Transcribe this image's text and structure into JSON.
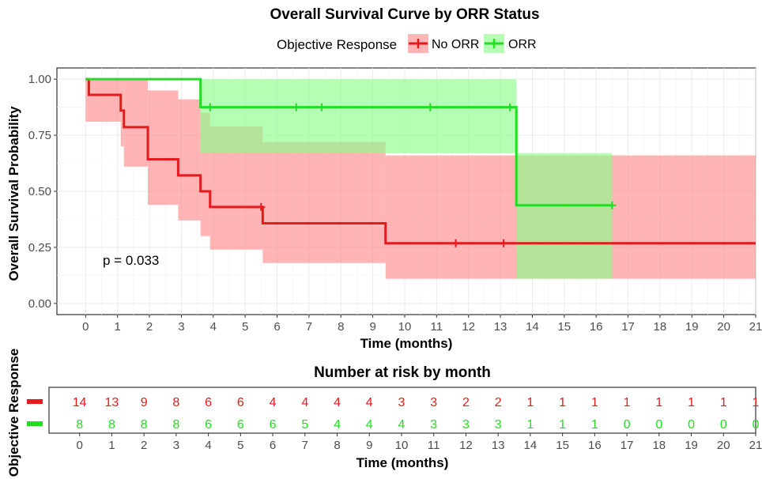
{
  "chart_data": [
    {
      "type": "line",
      "chart_kind": "kaplan-meier",
      "title": "Overall Survival Curve by ORR Status",
      "xlabel": "Time (months)",
      "ylabel": "Overall Survival Probability",
      "xlim": [
        -0.9,
        21
      ],
      "ylim": [
        -0.05,
        1.05
      ],
      "x_ticks": [
        0,
        1,
        2,
        3,
        4,
        5,
        6,
        7,
        8,
        9,
        10,
        11,
        12,
        13,
        14,
        15,
        16,
        17,
        18,
        19,
        20,
        21
      ],
      "y_ticks": [
        0.0,
        0.25,
        0.5,
        0.75,
        1.0
      ],
      "y_tick_labels": [
        "0.00",
        "0.25",
        "0.50",
        "0.75",
        "1.00"
      ],
      "grid": true,
      "legend": {
        "title": "Objective Response",
        "placement": "top",
        "entries": [
          "No ORR",
          "ORR"
        ]
      },
      "annotation": "p = 0.033",
      "series": [
        {
          "name": "No ORR",
          "color": "#e41a1c",
          "band_color": "#ff8888",
          "steps": [
            {
              "x": 0,
              "y": 1.0
            },
            {
              "x": 0.1,
              "y": 0.93
            },
            {
              "x": 1.1,
              "y": 0.86
            },
            {
              "x": 1.2,
              "y": 0.786
            },
            {
              "x": 1.95,
              "y": 0.643
            },
            {
              "x": 2.9,
              "y": 0.571
            },
            {
              "x": 3.6,
              "y": 0.5
            },
            {
              "x": 3.9,
              "y": 0.43
            },
            {
              "x": 5.55,
              "y": 0.357
            },
            {
              "x": 9.4,
              "y": 0.268
            }
          ],
          "end_x": 21,
          "censor_x": [
            5.5,
            11.6,
            13.1
          ],
          "ci": [
            {
              "x": 0,
              "lo": 0.81,
              "hi": 1.0
            },
            {
              "x": 1.1,
              "lo": 0.7,
              "hi": 1.0
            },
            {
              "x": 1.2,
              "lo": 0.61,
              "hi": 1.0
            },
            {
              "x": 1.95,
              "lo": 0.44,
              "hi": 0.95
            },
            {
              "x": 2.9,
              "lo": 0.37,
              "hi": 0.91
            },
            {
              "x": 3.6,
              "lo": 0.3,
              "hi": 0.85
            },
            {
              "x": 3.9,
              "lo": 0.24,
              "hi": 0.79
            },
            {
              "x": 5.55,
              "lo": 0.18,
              "hi": 0.72
            },
            {
              "x": 9.4,
              "lo": 0.11,
              "hi": 0.66
            }
          ]
        },
        {
          "name": "ORR",
          "color": "#22dd22",
          "band_color": "#88ff88",
          "steps": [
            {
              "x": 0,
              "y": 1.0
            },
            {
              "x": 3.6,
              "y": 0.875
            },
            {
              "x": 13.5,
              "y": 0.4375
            }
          ],
          "end_x": 16.5,
          "censor_x": [
            3.9,
            6.6,
            7.4,
            10.8,
            13.3,
            16.5
          ],
          "ci": [
            {
              "x": 0,
              "lo": 1.0,
              "hi": 1.0
            },
            {
              "x": 3.6,
              "lo": 0.67,
              "hi": 1.0
            },
            {
              "x": 13.5,
              "lo": 0.11,
              "hi": 0.67
            }
          ]
        }
      ]
    },
    {
      "type": "table",
      "title": "Number at risk by month",
      "xlabel": "Time (months)",
      "ylabel": "Objective Response",
      "x_ticks": [
        0,
        1,
        2,
        3,
        4,
        5,
        6,
        7,
        8,
        9,
        10,
        11,
        12,
        13,
        14,
        15,
        16,
        17,
        18,
        19,
        20,
        21
      ],
      "rows": [
        {
          "name": "No ORR",
          "color": "#e41a1c",
          "values": [
            14,
            13,
            9,
            8,
            6,
            6,
            4,
            4,
            4,
            4,
            3,
            3,
            2,
            2,
            1,
            1,
            1,
            1,
            1,
            1,
            1,
            1
          ]
        },
        {
          "name": "ORR",
          "color": "#22dd22",
          "values": [
            8,
            8,
            8,
            8,
            6,
            6,
            6,
            5,
            4,
            4,
            4,
            3,
            3,
            3,
            1,
            1,
            1,
            0,
            0,
            0,
            0,
            0
          ]
        }
      ]
    }
  ]
}
